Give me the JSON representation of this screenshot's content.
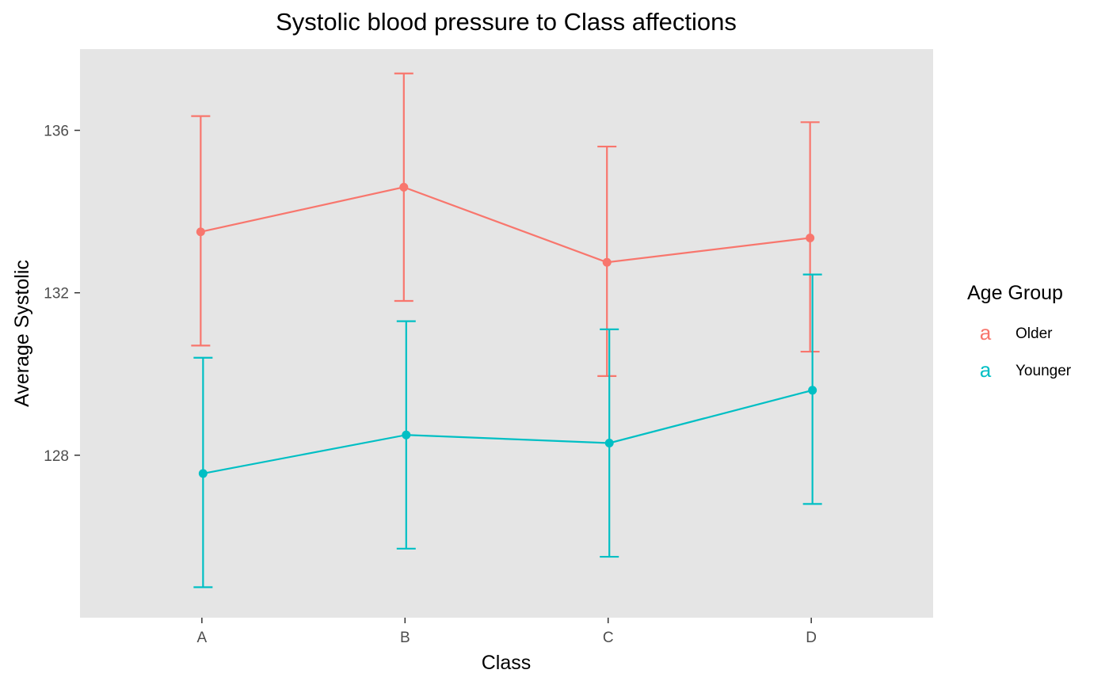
{
  "chart_data": {
    "type": "line",
    "title": "Systolic blood pressure to Class affections",
    "xlabel": "Class",
    "ylabel": "Average Systolic",
    "categories": [
      "A",
      "B",
      "C",
      "D"
    ],
    "y_ticks": [
      128,
      132,
      136
    ],
    "ylim": [
      124.0,
      138.0
    ],
    "grid": false,
    "panel_background": "#e5e5e5",
    "legend": {
      "title": "Age Group",
      "position": "right",
      "key_glyph": "a"
    },
    "series": [
      {
        "name": "Older",
        "color": "#f8766d",
        "values": [
          133.5,
          134.6,
          132.75,
          133.35
        ],
        "lower": [
          130.7,
          131.8,
          129.95,
          130.55
        ],
        "upper": [
          136.35,
          137.4,
          135.6,
          136.2
        ]
      },
      {
        "name": "Younger",
        "color": "#00bfc4",
        "values": [
          127.55,
          128.5,
          128.3,
          129.6
        ],
        "lower": [
          124.75,
          125.7,
          125.5,
          126.8
        ],
        "upper": [
          130.4,
          131.3,
          131.1,
          132.45
        ]
      }
    ]
  }
}
